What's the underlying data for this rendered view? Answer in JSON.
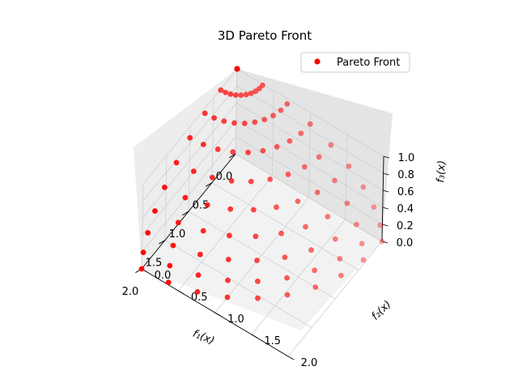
{
  "chart_data": {
    "type": "scatter3d",
    "title": "3D Pareto Front",
    "xlabel": "f₁(x)",
    "ylabel": "f₂(x)",
    "zlabel": "f₃(x)",
    "xlim": [
      0,
      2
    ],
    "ylim": [
      0,
      2
    ],
    "zlim": [
      0,
      1
    ],
    "xticks": [
      "0.0",
      "0.5",
      "1.0",
      "1.5",
      "2.0"
    ],
    "yticks": [
      "0.0",
      "0.5",
      "1.0",
      "1.5",
      "2.0"
    ],
    "zticks": [
      "0.0",
      "0.2",
      "0.4",
      "0.6",
      "0.8",
      "1.0"
    ],
    "grid": true,
    "legend": {
      "position": "top-right",
      "entries": [
        "Pareto Front"
      ]
    },
    "series": [
      {
        "name": "Pareto Front",
        "color": "#ff0000"
      }
    ]
  }
}
